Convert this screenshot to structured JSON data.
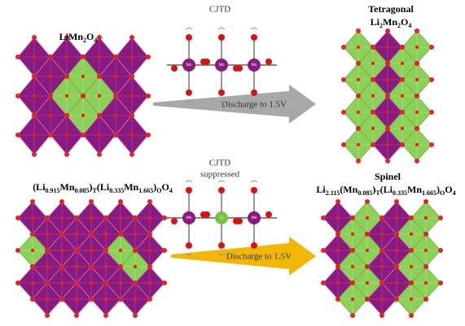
{
  "top_left": {
    "formula": [
      {
        "text": "LiMn"
      },
      {
        "sub": "2"
      },
      {
        "text": "O"
      },
      {
        "sub": "4"
      }
    ]
  },
  "top_center": {
    "label": "CJTD",
    "atoms": [
      "Mn",
      "Mn",
      "Mn"
    ],
    "arrow": "Discharge to 1.5V"
  },
  "top_right": {
    "title": "Tetragonal",
    "formula": [
      {
        "text": "Li"
      },
      {
        "sub": "2"
      },
      {
        "text": "Mn"
      },
      {
        "sub": "2"
      },
      {
        "text": "O"
      },
      {
        "sub": "4"
      }
    ]
  },
  "bottom_left": {
    "formula": [
      {
        "text": "(Li"
      },
      {
        "sub": "0.915"
      },
      {
        "text": "Mn"
      },
      {
        "sub": "0.085"
      },
      {
        "text": ")"
      },
      {
        "sub": "T"
      },
      {
        "text": "(Li"
      },
      {
        "sub": "0.335"
      },
      {
        "text": "Mn"
      },
      {
        "sub": "1.665"
      },
      {
        "text": ")"
      },
      {
        "sub": "O"
      },
      {
        "text": "O"
      },
      {
        "sub": "4"
      }
    ]
  },
  "bottom_center": {
    "label": [
      "CJTD",
      "suppressed"
    ],
    "atoms": [
      "Mn",
      "Li",
      "Mn"
    ],
    "arrow": "Discharge to 1.5V"
  },
  "bottom_right": {
    "title": "Spinel",
    "formula": [
      {
        "text": "Li"
      },
      {
        "sub": "2.115"
      },
      {
        "text": "(Mn"
      },
      {
        "sub": "0.085"
      },
      {
        "text": ")"
      },
      {
        "sub": "T"
      },
      {
        "text": "(Li"
      },
      {
        "sub": "0.335"
      },
      {
        "text": "Mn"
      },
      {
        "sub": "1.665"
      },
      {
        "text": ")"
      },
      {
        "sub": "O"
      },
      {
        "text": "O"
      },
      {
        "sub": "4"
      }
    ]
  }
}
